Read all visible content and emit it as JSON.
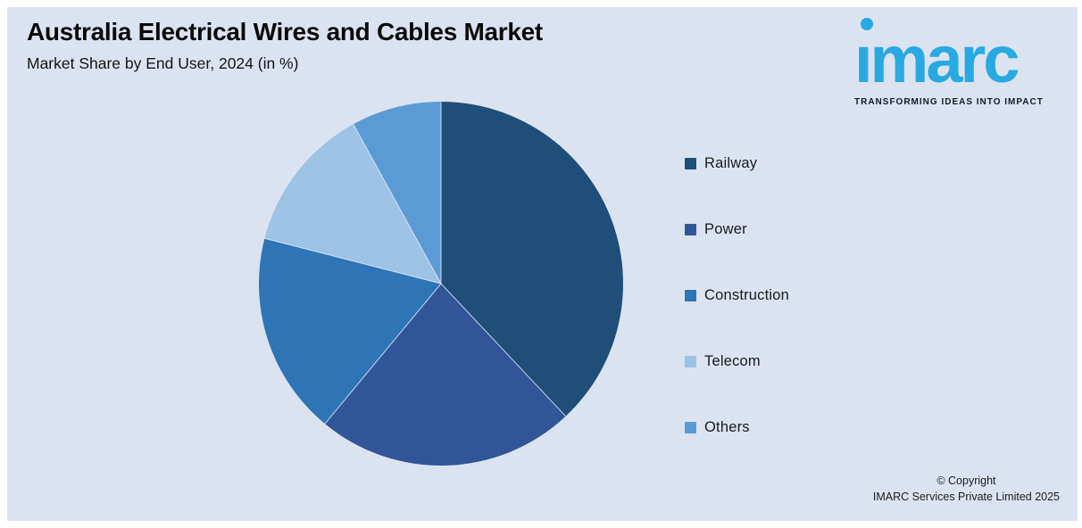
{
  "panel": {
    "background": "#dce3f0",
    "frame": "#ffffff"
  },
  "header": {
    "title": "Australia Electrical Wires and Cables Market",
    "subtitle": "Market Share by End User, 2024 (in %)"
  },
  "logo": {
    "brand": "imarc",
    "brand_display": "ımarc",
    "tagline": "TRANSFORMING IDEAS INTO IMPACT",
    "brand_color": "#29a9e1",
    "tagline_color": "#111b30"
  },
  "chart_data": {
    "type": "pie",
    "title": "Australia Electrical Wires and Cables Market",
    "subtitle": "Market Share by End User, 2024 (in %)",
    "labels": [
      "Railway",
      "Power",
      "Construction",
      "Telecom",
      "Others"
    ],
    "values": [
      38,
      23,
      18,
      13,
      8
    ],
    "colors": [
      "#1f4e79",
      "#305698",
      "#2e75b6",
      "#9dc3e6",
      "#5b9bd5"
    ],
    "unit": "%",
    "start_angle_deg": 0,
    "direction": "clockwise",
    "legend_position": "right",
    "data_labels_shown": false
  },
  "footer": {
    "line1": "© Copyright",
    "line2": "IMARC Services Private Limited 2025"
  }
}
